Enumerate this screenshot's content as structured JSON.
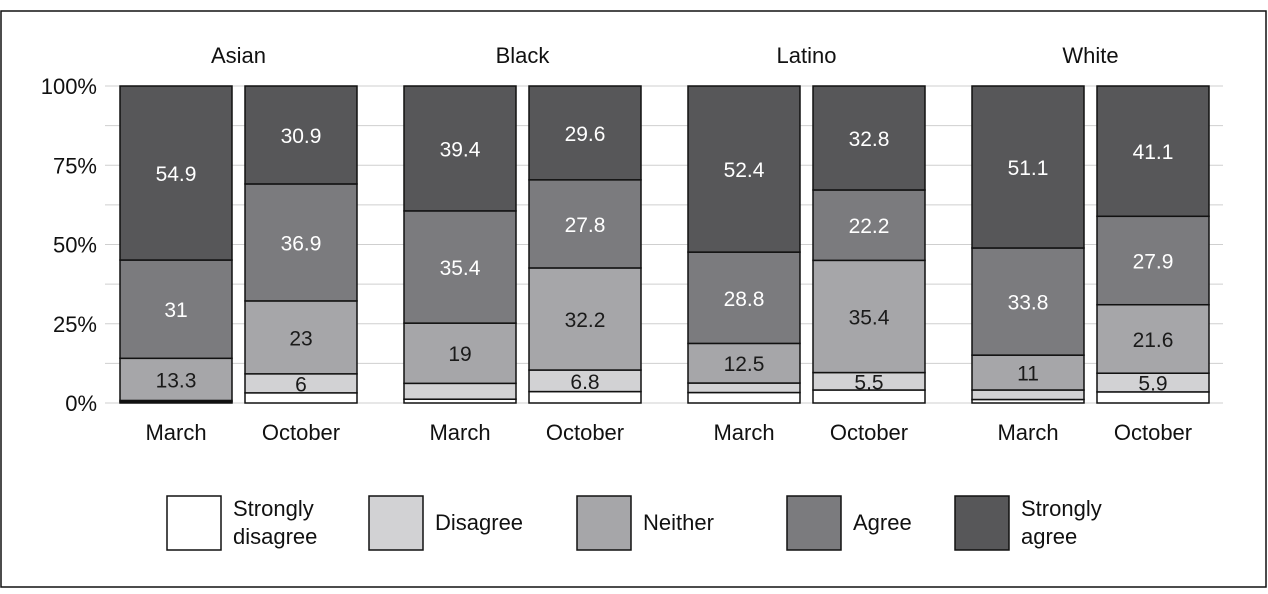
{
  "chart_data": {
    "type": "bar",
    "stacked": true,
    "ylim": [
      0,
      100
    ],
    "yticks": [
      "0%",
      "25%",
      "50%",
      "75%",
      "100%"
    ],
    "categories": [
      "March",
      "October"
    ],
    "segments": [
      "Strongly disagree",
      "Disagree",
      "Neither",
      "Agree",
      "Strongly agree"
    ],
    "legend": {
      "position": "bottom",
      "items": [
        {
          "label": "Strongly disagree",
          "color": "#ffffff"
        },
        {
          "label": "Disagree",
          "color": "#d2d2d4"
        },
        {
          "label": "Neither",
          "color": "#a6a6a9"
        },
        {
          "label": "Agree",
          "color": "#7b7b7e"
        },
        {
          "label": "Strongly agree",
          "color": "#575759"
        }
      ]
    },
    "panels": [
      {
        "title": "Asian",
        "bars": [
          {
            "category": "March",
            "values": [
              0.4,
              0.4,
              13.3,
              31,
              54.9
            ],
            "labels": [
              "",
              "",
              "13.3",
              "31",
              "54.9"
            ]
          },
          {
            "category": "October",
            "values": [
              3.2,
              6,
              23,
              36.9,
              30.9
            ],
            "labels": [
              "",
              "6",
              "23",
              "36.9",
              "30.9"
            ]
          }
        ]
      },
      {
        "title": "Black",
        "bars": [
          {
            "category": "March",
            "values": [
              1.2,
              5,
              19,
              35.4,
              39.4
            ],
            "labels": [
              "",
              "",
              "19",
              "35.4",
              "39.4"
            ]
          },
          {
            "category": "October",
            "values": [
              3.6,
              6.8,
              32.2,
              27.8,
              29.6
            ],
            "labels": [
              "",
              "6.8",
              "32.2",
              "27.8",
              "29.6"
            ]
          }
        ]
      },
      {
        "title": "Latino",
        "bars": [
          {
            "category": "March",
            "values": [
              3.3,
              3,
              12.5,
              28.8,
              52.4
            ],
            "labels": [
              "",
              "",
              "12.5",
              "28.8",
              "52.4"
            ]
          },
          {
            "category": "October",
            "values": [
              4.1,
              5.5,
              35.4,
              22.2,
              32.8
            ],
            "labels": [
              "",
              "5.5",
              "35.4",
              "22.2",
              "32.8"
            ]
          }
        ]
      },
      {
        "title": "White",
        "bars": [
          {
            "category": "March",
            "values": [
              1.1,
              3,
              11,
              33.8,
              51.1
            ],
            "labels": [
              "",
              "",
              "11",
              "33.8",
              "51.1"
            ]
          },
          {
            "category": "October",
            "values": [
              3.5,
              5.9,
              21.6,
              27.9,
              41.1
            ],
            "labels": [
              "",
              "5.9",
              "21.6",
              "27.9",
              "41.1"
            ]
          }
        ]
      }
    ],
    "grid": true,
    "colors": {
      "segments": [
        "#ffffff",
        "#d2d2d4",
        "#a6a6a9",
        "#7b7b7e",
        "#575759"
      ],
      "label_dark": "#1a1a1a",
      "label_light": "#ffffff",
      "grid": "#cfcfcf",
      "border": "#111111"
    }
  }
}
